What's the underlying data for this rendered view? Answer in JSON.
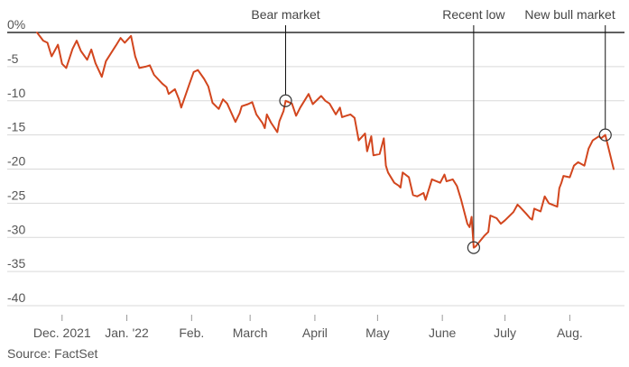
{
  "source": "Source: FactSet",
  "chart_data": {
    "type": "line",
    "y_unit": "%",
    "yticks": [
      0,
      -5,
      -10,
      -15,
      -20,
      -25,
      -30,
      -35,
      -40
    ],
    "ytick_labels": [
      "0%",
      "-5",
      "-10",
      "-15",
      "-20",
      "-25",
      "-30",
      "-35",
      "-40"
    ],
    "ylim": [
      -40,
      0
    ],
    "grid": true,
    "colors": {
      "series": "#d2461e",
      "grid": "#d9d9d9",
      "zero_line": "#000000"
    },
    "xticks": [
      {
        "x": "2021-12-01",
        "label": "Dec. 2021"
      },
      {
        "x": "2022-01-01",
        "label": "Jan. '22"
      },
      {
        "x": "2022-02-01",
        "label": "Feb."
      },
      {
        "x": "2022-03-01",
        "label": "March"
      },
      {
        "x": "2022-04-01",
        "label": "April"
      },
      {
        "x": "2022-05-01",
        "label": "May"
      },
      {
        "x": "2022-06-01",
        "label": "June"
      },
      {
        "x": "2022-07-01",
        "label": "July"
      },
      {
        "x": "2022-08-01",
        "label": "Aug."
      }
    ],
    "xlim": [
      "2021-11-19",
      "2022-08-22"
    ],
    "series": [
      {
        "values": [
          [
            "2021-11-19",
            0
          ],
          [
            "2021-11-22",
            -1.2
          ],
          [
            "2021-11-24",
            -1.5
          ],
          [
            "2021-11-26",
            -3.5
          ],
          [
            "2021-11-29",
            -1.8
          ],
          [
            "2021-12-01",
            -4.6
          ],
          [
            "2021-12-03",
            -5.2
          ],
          [
            "2021-12-06",
            -2.4
          ],
          [
            "2021-12-08",
            -1.2
          ],
          [
            "2021-12-10",
            -2.7
          ],
          [
            "2021-12-13",
            -4.0
          ],
          [
            "2021-12-15",
            -2.5
          ],
          [
            "2021-12-17",
            -4.5
          ],
          [
            "2021-12-20",
            -6.5
          ],
          [
            "2021-12-22",
            -4.2
          ],
          [
            "2021-12-27",
            -1.8
          ],
          [
            "2021-12-29",
            -0.8
          ],
          [
            "2021-12-31",
            -1.5
          ],
          [
            "2022-01-03",
            -0.5
          ],
          [
            "2022-01-05",
            -3.5
          ],
          [
            "2022-01-07",
            -5.2
          ],
          [
            "2022-01-10",
            -5.0
          ],
          [
            "2022-01-12",
            -4.8
          ],
          [
            "2022-01-14",
            -6.2
          ],
          [
            "2022-01-18",
            -7.5
          ],
          [
            "2022-01-20",
            -8.0
          ],
          [
            "2022-01-21",
            -9.0
          ],
          [
            "2022-01-24",
            -8.3
          ],
          [
            "2022-01-26",
            -9.8
          ],
          [
            "2022-01-27",
            -11.0
          ],
          [
            "2022-01-31",
            -7.5
          ],
          [
            "2022-02-02",
            -5.8
          ],
          [
            "2022-02-04",
            -5.5
          ],
          [
            "2022-02-07",
            -6.8
          ],
          [
            "2022-02-09",
            -7.9
          ],
          [
            "2022-02-11",
            -10.3
          ],
          [
            "2022-02-14",
            -11.2
          ],
          [
            "2022-02-16",
            -9.8
          ],
          [
            "2022-02-18",
            -10.4
          ],
          [
            "2022-02-22",
            -13.1
          ],
          [
            "2022-02-24",
            -11.8
          ],
          [
            "2022-02-25",
            -10.8
          ],
          [
            "2022-02-28",
            -10.5
          ],
          [
            "2022-03-02",
            -10.2
          ],
          [
            "2022-03-04",
            -12.0
          ],
          [
            "2022-03-07",
            -13.3
          ],
          [
            "2022-03-08",
            -14.0
          ],
          [
            "2022-03-09",
            -12.0
          ],
          [
            "2022-03-11",
            -13.2
          ],
          [
            "2022-03-14",
            -14.6
          ],
          [
            "2022-03-15",
            -13.0
          ],
          [
            "2022-03-17",
            -11.5
          ],
          [
            "2022-03-18",
            -10.0
          ],
          [
            "2022-03-21",
            -10.4
          ],
          [
            "2022-03-23",
            -12.2
          ],
          [
            "2022-03-25",
            -11.0
          ],
          [
            "2022-03-29",
            -9.0
          ],
          [
            "2022-03-31",
            -10.5
          ],
          [
            "2022-04-04",
            -9.3
          ],
          [
            "2022-04-06",
            -10.0
          ],
          [
            "2022-04-08",
            -10.4
          ],
          [
            "2022-04-11",
            -12.0
          ],
          [
            "2022-04-13",
            -11.0
          ],
          [
            "2022-04-14",
            -12.4
          ],
          [
            "2022-04-18",
            -12.0
          ],
          [
            "2022-04-20",
            -12.5
          ],
          [
            "2022-04-22",
            -15.8
          ],
          [
            "2022-04-25",
            -14.8
          ],
          [
            "2022-04-26",
            -17.4
          ],
          [
            "2022-04-28",
            -15.2
          ],
          [
            "2022-04-29",
            -18.0
          ],
          [
            "2022-05-02",
            -17.8
          ],
          [
            "2022-05-04",
            -15.5
          ],
          [
            "2022-05-05",
            -19.5
          ],
          [
            "2022-05-06",
            -20.5
          ],
          [
            "2022-05-09",
            -22.0
          ],
          [
            "2022-05-11",
            -22.4
          ],
          [
            "2022-05-12",
            -22.7
          ],
          [
            "2022-05-13",
            -20.5
          ],
          [
            "2022-05-16",
            -21.2
          ],
          [
            "2022-05-18",
            -23.8
          ],
          [
            "2022-05-20",
            -24.0
          ],
          [
            "2022-05-23",
            -23.5
          ],
          [
            "2022-05-24",
            -24.5
          ],
          [
            "2022-05-26",
            -22.5
          ],
          [
            "2022-05-27",
            -21.5
          ],
          [
            "2022-05-31",
            -22.0
          ],
          [
            "2022-06-02",
            -20.8
          ],
          [
            "2022-06-03",
            -21.8
          ],
          [
            "2022-06-06",
            -21.5
          ],
          [
            "2022-06-08",
            -22.5
          ],
          [
            "2022-06-10",
            -24.5
          ],
          [
            "2022-06-13",
            -28.0
          ],
          [
            "2022-06-14",
            -28.5
          ],
          [
            "2022-06-15",
            -27.0
          ],
          [
            "2022-06-16",
            -31.5
          ],
          [
            "2022-06-17",
            -31.3
          ],
          [
            "2022-06-21",
            -29.8
          ],
          [
            "2022-06-23",
            -29.2
          ],
          [
            "2022-06-24",
            -26.8
          ],
          [
            "2022-06-27",
            -27.2
          ],
          [
            "2022-06-29",
            -28.0
          ],
          [
            "2022-07-01",
            -27.5
          ],
          [
            "2022-07-05",
            -26.3
          ],
          [
            "2022-07-07",
            -25.2
          ],
          [
            "2022-07-08",
            -25.5
          ],
          [
            "2022-07-11",
            -26.5
          ],
          [
            "2022-07-13",
            -27.2
          ],
          [
            "2022-07-14",
            -27.4
          ],
          [
            "2022-07-15",
            -25.8
          ],
          [
            "2022-07-18",
            -26.2
          ],
          [
            "2022-07-20",
            -24.0
          ],
          [
            "2022-07-22",
            -25.0
          ],
          [
            "2022-07-26",
            -25.5
          ],
          [
            "2022-07-27",
            -22.8
          ],
          [
            "2022-07-28",
            -22.0
          ],
          [
            "2022-07-29",
            -21.0
          ],
          [
            "2022-08-01",
            -21.2
          ],
          [
            "2022-08-03",
            -19.5
          ],
          [
            "2022-08-05",
            -19.0
          ],
          [
            "2022-08-08",
            -19.5
          ],
          [
            "2022-08-10",
            -17.0
          ],
          [
            "2022-08-12",
            -15.8
          ],
          [
            "2022-08-15",
            -15.2
          ],
          [
            "2022-08-16",
            -15.5
          ],
          [
            "2022-08-18",
            -15.0
          ],
          [
            "2022-08-22",
            -20.0
          ]
        ]
      }
    ],
    "annotations": [
      {
        "label": "Bear market",
        "x": "2022-03-18",
        "y": -10.0
      },
      {
        "label": "Recent low",
        "x": "2022-06-16",
        "y": -31.5
      },
      {
        "label": "New bull market",
        "x": "2022-08-18",
        "y": -15.0
      }
    ]
  }
}
